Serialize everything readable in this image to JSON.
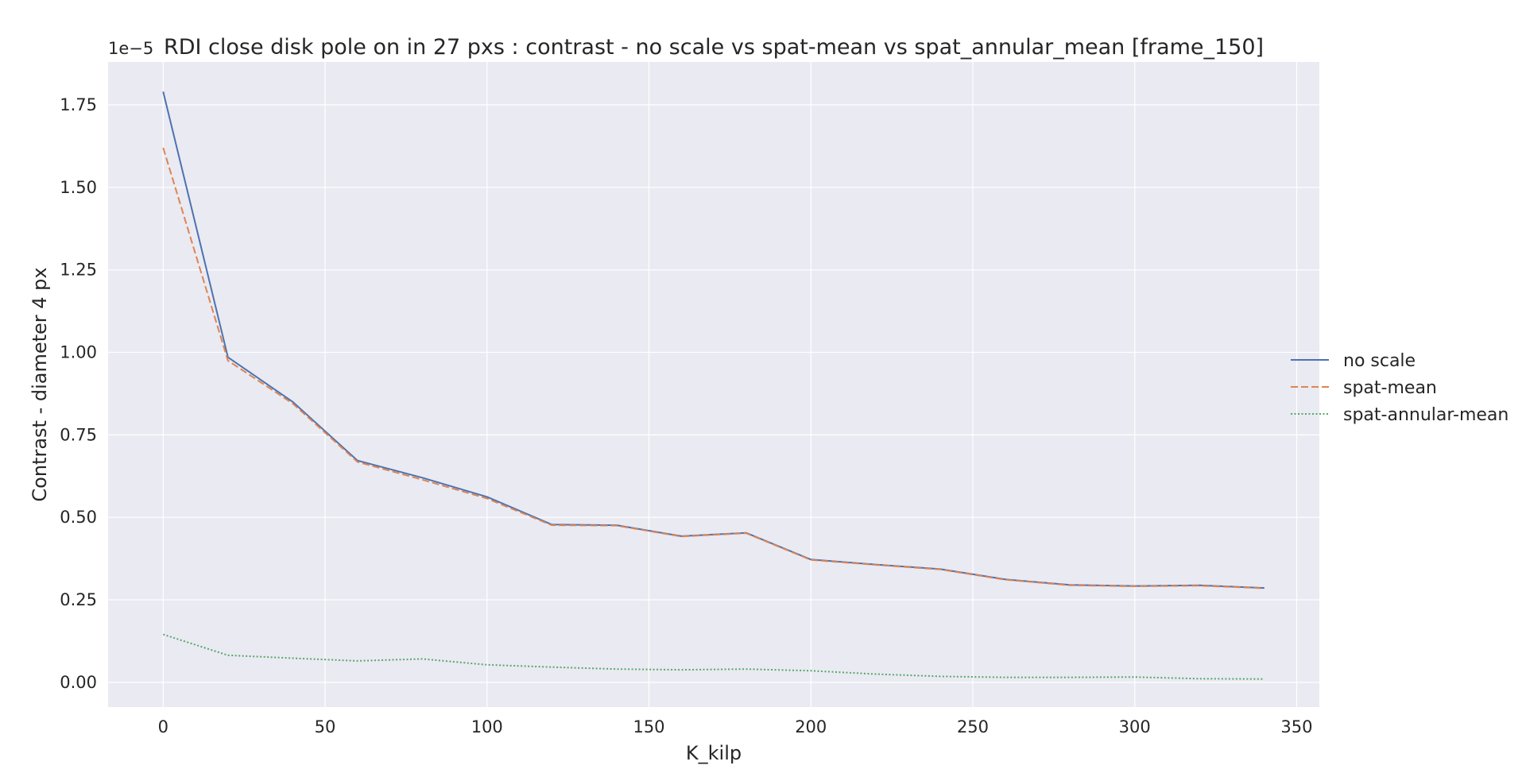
{
  "chart_data": {
    "type": "line",
    "title": "RDI close disk pole on in 27 pxs : contrast - no scale vs spat-mean vs spat_annular_mean [frame_150]",
    "xlabel": "K_kilp",
    "ylabel": "Contrast - diameter 4 px",
    "y_offset_text": "1e−5",
    "xlim": [
      -17,
      357
    ],
    "ylim": [
      -0.075,
      1.88
    ],
    "x_ticks": [
      0,
      50,
      100,
      150,
      200,
      250,
      300,
      350
    ],
    "y_ticks": [
      0.0,
      0.25,
      0.5,
      0.75,
      1.0,
      1.25,
      1.5,
      1.75
    ],
    "y_tick_labels": [
      "0.00",
      "0.25",
      "0.50",
      "0.75",
      "1.00",
      "1.25",
      "1.50",
      "1.75"
    ],
    "grid": true,
    "legend_position": "right",
    "x": [
      0,
      20,
      40,
      60,
      80,
      100,
      120,
      140,
      160,
      180,
      200,
      220,
      240,
      260,
      280,
      300,
      320,
      340
    ],
    "series": [
      {
        "name": "no scale",
        "color": "#4c72b0",
        "style": "solid",
        "values": [
          1.79,
          0.985,
          0.85,
          0.672,
          0.62,
          0.562,
          0.478,
          0.476,
          0.443,
          0.453,
          0.372,
          0.357,
          0.343,
          0.312,
          0.295,
          0.292,
          0.294,
          0.286
        ]
      },
      {
        "name": "spat-mean",
        "color": "#dd8452",
        "style": "dashed",
        "values": [
          1.62,
          0.975,
          0.845,
          0.668,
          0.614,
          0.557,
          0.476,
          0.475,
          0.442,
          0.452,
          0.371,
          0.356,
          0.342,
          0.311,
          0.294,
          0.291,
          0.293,
          0.285
        ]
      },
      {
        "name": "spat-annular-mean",
        "color": "#55a868",
        "style": "dotted",
        "values": [
          0.145,
          0.082,
          0.073,
          0.065,
          0.071,
          0.053,
          0.046,
          0.04,
          0.038,
          0.04,
          0.035,
          0.025,
          0.018,
          0.015,
          0.015,
          0.016,
          0.011,
          0.01
        ]
      }
    ]
  }
}
